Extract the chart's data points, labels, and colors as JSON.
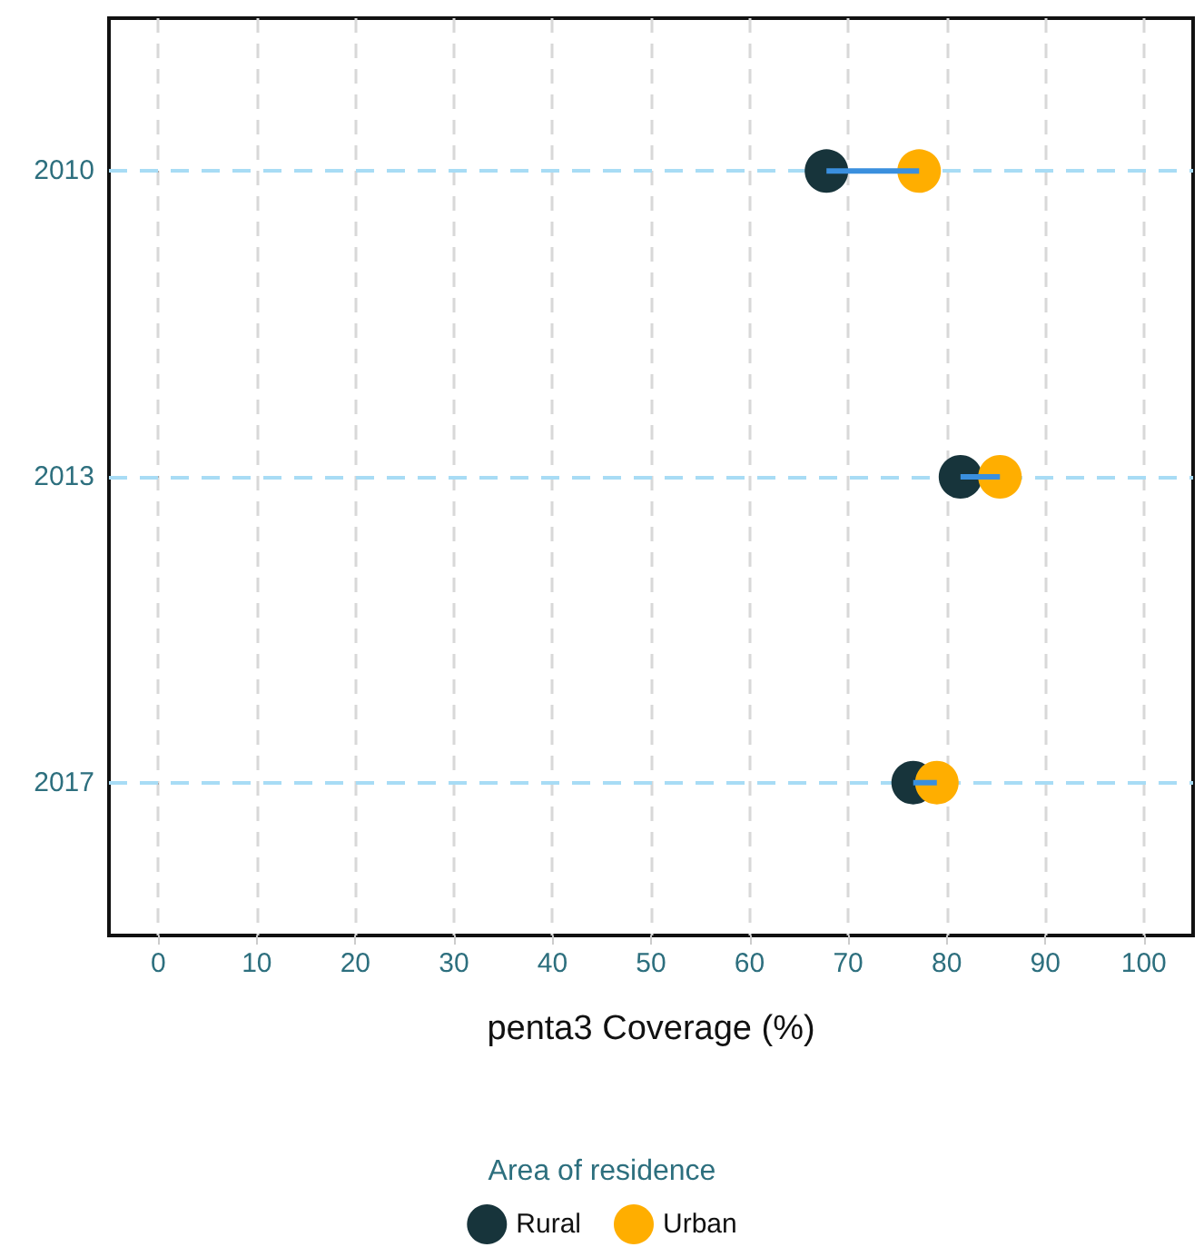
{
  "chart_data": {
    "type": "scatter",
    "orientation": "horizontal",
    "xlabel": "penta3 Coverage (%)",
    "legend_title": "Area of residence",
    "categories": [
      "2010",
      "2013",
      "2017"
    ],
    "series": [
      {
        "type": "bar",
        "color": "#3a8fde",
        "base": [
          67.8,
          81.4,
          76.6
        ],
        "values": [
          9.4,
          4.0,
          2.4
        ]
      },
      {
        "name": "Rural",
        "color": "#17343b",
        "values": [
          67.8,
          81.4,
          76.6
        ]
      },
      {
        "name": "Urban",
        "color": "#ffae00",
        "values": [
          77.2,
          85.4,
          79.0
        ]
      }
    ],
    "xlim": [
      -5,
      105
    ],
    "xticks": [
      0,
      10,
      20,
      30,
      40,
      50,
      60,
      70,
      80,
      90,
      100
    ],
    "grid": true,
    "legend": "bottom",
    "marker": "circle"
  }
}
